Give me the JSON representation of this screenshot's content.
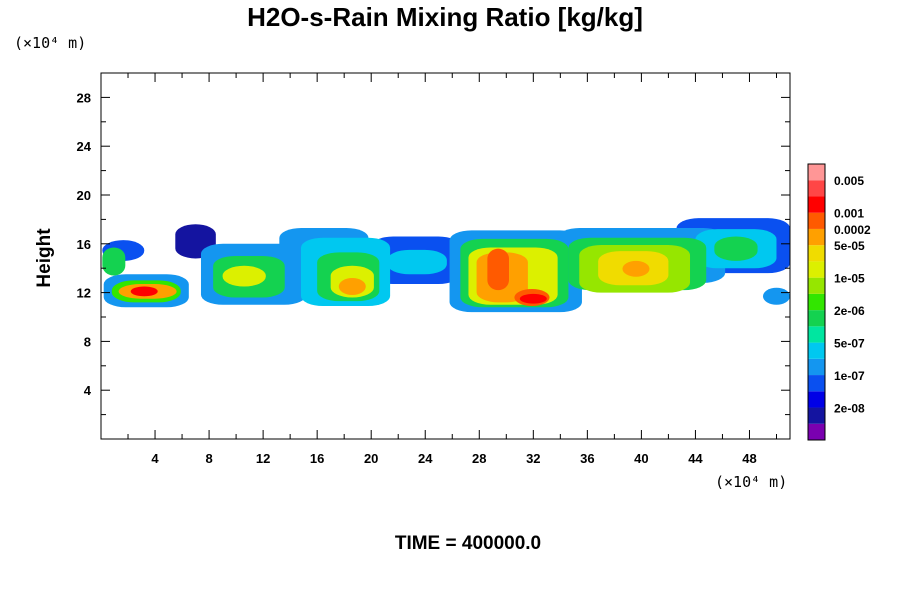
{
  "chart_data": {
    "type": "heatmap",
    "title": "H2O-s-Rain Mixing Ratio [kg/kg]",
    "ylabel": "Height",
    "x_unit": "(×10⁴ m)",
    "y_unit": "(×10⁴ m)",
    "x_ticks": [
      4,
      8,
      12,
      16,
      20,
      24,
      28,
      32,
      36,
      40,
      44,
      48
    ],
    "y_ticks": [
      4,
      8,
      12,
      16,
      20,
      24,
      28
    ],
    "xlim": [
      0,
      51
    ],
    "ylim": [
      0,
      30
    ],
    "grid": false,
    "legend_position": "right",
    "footer": "TIME = 400000.0",
    "colorbar": {
      "colors": [
        "#7a00b0",
        "#1414a0",
        "#0000e6",
        "#0a50f0",
        "#1496f0",
        "#00c8f0",
        "#00e6a0",
        "#14d250",
        "#32e600",
        "#96e600",
        "#dcf000",
        "#f0dc00",
        "#ffa000",
        "#ff5a00",
        "#ff0000",
        "#ff4646",
        "#ff9696"
      ],
      "labels": [
        {
          "text": "2e-08",
          "after_index": 1
        },
        {
          "text": "1e-07",
          "after_index": 3
        },
        {
          "text": "5e-07",
          "after_index": 5
        },
        {
          "text": "2e-06",
          "after_index": 7
        },
        {
          "text": "1e-05",
          "after_index": 9
        },
        {
          "text": "5e-05",
          "after_index": 11
        },
        {
          "text": "0.0002",
          "after_index": 12
        },
        {
          "text": "0.001",
          "after_index": 13
        },
        {
          "text": "0.005",
          "after_index": 15
        }
      ]
    },
    "field_blobs": [
      {
        "x": [
          0.1,
          3.2
        ],
        "y": [
          14.6,
          16.3
        ],
        "level": 3
      },
      {
        "x": [
          0.1,
          1.8
        ],
        "y": [
          13.4,
          15.7
        ],
        "level": 7
      },
      {
        "x": [
          0.2,
          6.5
        ],
        "y": [
          10.8,
          13.5
        ],
        "level": 4
      },
      {
        "x": [
          0.8,
          5.9
        ],
        "y": [
          11.2,
          13.0
        ],
        "level": 8
      },
      {
        "x": [
          1.3,
          5.6
        ],
        "y": [
          11.5,
          12.7
        ],
        "level": 12
      },
      {
        "x": [
          2.2,
          4.2
        ],
        "y": [
          11.7,
          12.5
        ],
        "level": 14
      },
      {
        "x": [
          5.5,
          8.5
        ],
        "y": [
          14.8,
          17.6
        ],
        "level": 1
      },
      {
        "x": [
          7.4,
          15.2
        ],
        "y": [
          11.0,
          16.0
        ],
        "level": 4
      },
      {
        "x": [
          8.3,
          13.6
        ],
        "y": [
          11.6,
          15.0
        ],
        "level": 7
      },
      {
        "x": [
          9.0,
          12.2
        ],
        "y": [
          12.5,
          14.2
        ],
        "level": 10
      },
      {
        "x": [
          13.2,
          19.8
        ],
        "y": [
          13.9,
          17.3
        ],
        "level": 4
      },
      {
        "x": [
          14.8,
          21.4
        ],
        "y": [
          10.9,
          16.5
        ],
        "level": 5
      },
      {
        "x": [
          16.0,
          20.6
        ],
        "y": [
          11.3,
          15.3
        ],
        "level": 7
      },
      {
        "x": [
          17.0,
          20.2
        ],
        "y": [
          11.6,
          14.2
        ],
        "level": 10
      },
      {
        "x": [
          17.6,
          19.6
        ],
        "y": [
          11.8,
          13.2
        ],
        "level": 12
      },
      {
        "x": [
          20.0,
          26.6
        ],
        "y": [
          12.7,
          16.6
        ],
        "level": 3
      },
      {
        "x": [
          21.2,
          25.6
        ],
        "y": [
          13.5,
          15.5
        ],
        "level": 5
      },
      {
        "x": [
          25.8,
          35.6
        ],
        "y": [
          10.4,
          17.1
        ],
        "level": 4
      },
      {
        "x": [
          26.6,
          34.6
        ],
        "y": [
          10.8,
          16.4
        ],
        "level": 7
      },
      {
        "x": [
          27.2,
          33.8
        ],
        "y": [
          11.0,
          15.7
        ],
        "level": 10
      },
      {
        "x": [
          27.8,
          31.6
        ],
        "y": [
          11.2,
          15.3
        ],
        "level": 12
      },
      {
        "x": [
          28.6,
          30.2
        ],
        "y": [
          12.2,
          15.6
        ],
        "level": 13
      },
      {
        "x": [
          30.6,
          33.2
        ],
        "y": [
          10.9,
          12.3
        ],
        "level": 13
      },
      {
        "x": [
          31.0,
          33.0
        ],
        "y": [
          11.1,
          11.9
        ],
        "level": 14
      },
      {
        "x": [
          33.8,
          46.2
        ],
        "y": [
          12.8,
          17.3
        ],
        "level": 4
      },
      {
        "x": [
          34.6,
          44.8
        ],
        "y": [
          12.2,
          16.5
        ],
        "level": 7
      },
      {
        "x": [
          35.4,
          43.6
        ],
        "y": [
          12.0,
          15.9
        ],
        "level": 9
      },
      {
        "x": [
          36.8,
          42.0
        ],
        "y": [
          12.6,
          15.4
        ],
        "level": 11
      },
      {
        "x": [
          38.6,
          40.6
        ],
        "y": [
          13.3,
          14.6
        ],
        "level": 12
      },
      {
        "x": [
          42.6,
          51.0
        ],
        "y": [
          13.6,
          18.1
        ],
        "level": 3
      },
      {
        "x": [
          44.0,
          50.0
        ],
        "y": [
          14.0,
          17.2
        ],
        "level": 5
      },
      {
        "x": [
          45.4,
          48.6
        ],
        "y": [
          14.6,
          16.6
        ],
        "level": 7
      },
      {
        "x": [
          49.0,
          51.0
        ],
        "y": [
          11.0,
          12.4
        ],
        "level": 4
      }
    ]
  }
}
